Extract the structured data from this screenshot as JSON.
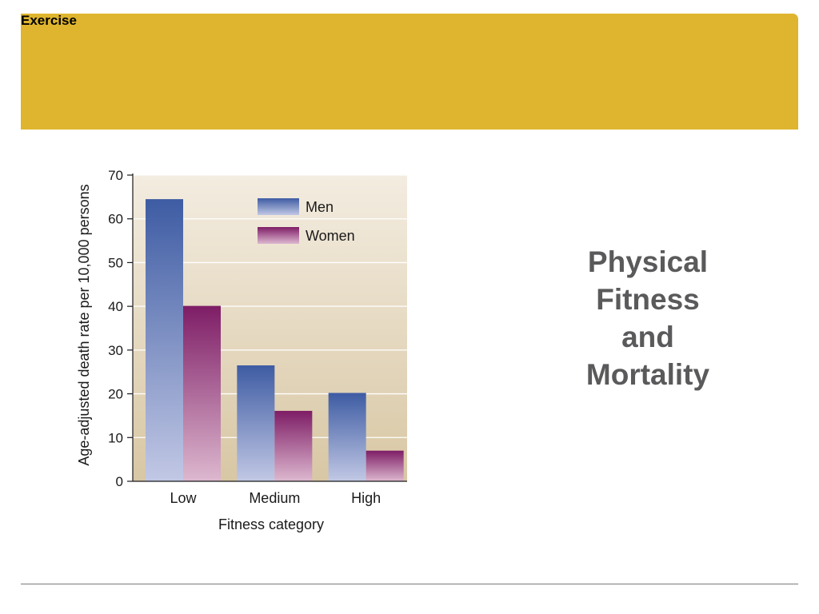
{
  "header": {
    "section_label": "Exercise",
    "band_color": "#dfb52f"
  },
  "title": {
    "line1": "Physical",
    "line2": "Fitness",
    "line3": "and",
    "line4": "Mortality"
  },
  "chart_data": {
    "type": "bar",
    "categories": [
      "Low",
      "Medium",
      "High"
    ],
    "series": [
      {
        "name": "Men",
        "values": [
          64.5,
          26.5,
          20.2
        ],
        "color_top": "#3e5ca3",
        "color_bottom": "#c2c8e5"
      },
      {
        "name": "Women",
        "values": [
          40.1,
          16.1,
          7.0
        ],
        "color_top": "#7e1d66",
        "color_bottom": "#ddb8cf"
      }
    ],
    "xlabel": "Fitness category",
    "ylabel": "Age-adjusted death rate per 10,000 persons",
    "ylim": [
      0,
      70
    ],
    "yticks": [
      0,
      10,
      20,
      30,
      40,
      50,
      60,
      70
    ],
    "grid": true,
    "legend": "top-right",
    "plot_background_top": "#f3ece0",
    "plot_background_bottom": "#d8c7a4"
  }
}
